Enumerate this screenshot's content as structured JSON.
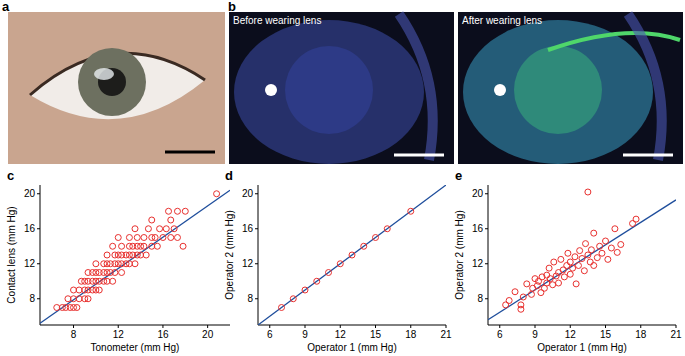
{
  "photos": [
    {
      "label": "a"
    },
    {
      "label": "b",
      "captions": [
        "Before wearing lens",
        "After wearing lens"
      ]
    }
  ],
  "chart_data": [
    {
      "type": "scatter",
      "panel": "c",
      "x_label": "Tonometer (mm Hg)",
      "y_label": "Contact lens (mm Hg)",
      "color": "#e8312f",
      "marker": "circle",
      "x": [
        6.5,
        7,
        7.3,
        7.7,
        8,
        8.3,
        7.5,
        8,
        8.5,
        9,
        9.3,
        8,
        8.5,
        9,
        9.3,
        9.7,
        10,
        10.3,
        8.7,
        9,
        9.3,
        9.7,
        10,
        10.3,
        10.7,
        11,
        11.5,
        9.3,
        9.7,
        10,
        10.3,
        10.7,
        11,
        11.3,
        11.7,
        12.3,
        10,
        10.7,
        11,
        11.3,
        11.7,
        12,
        12.3,
        12.7,
        13,
        13.5,
        11,
        11.7,
        12,
        12.3,
        12.7,
        13,
        13.3,
        13.7,
        14,
        14.5,
        11.5,
        12.3,
        13,
        13.3,
        13.7,
        14,
        14.3,
        15,
        15.5,
        17.8,
        12,
        13,
        13.7,
        14.3,
        15,
        15.3,
        16,
        16.7,
        17.3,
        13.5,
        14.7,
        15.7,
        16.3,
        17,
        15,
        16.7,
        16.5,
        17.3,
        18,
        20.8
      ],
      "values": [
        7,
        7,
        7,
        7,
        7,
        7,
        8,
        8,
        8,
        8,
        8,
        9,
        9,
        9,
        9,
        9,
        9,
        9,
        10,
        10,
        10,
        10,
        10,
        10,
        10,
        10,
        10,
        11,
        11,
        11,
        11,
        11,
        11,
        11,
        11,
        11,
        12,
        12,
        12,
        12,
        12,
        12,
        12,
        12,
        12,
        12,
        13,
        13,
        13,
        13,
        13,
        13,
        13,
        13,
        13,
        13,
        14,
        14,
        14,
        14,
        14,
        14,
        14,
        14,
        14,
        14,
        15,
        15,
        15,
        15,
        15,
        15,
        15,
        15,
        15,
        16,
        16,
        16,
        16,
        16,
        17,
        17,
        18,
        18,
        18,
        20
      ],
      "fit": {
        "color": "#1f4e9c",
        "x": [
          5,
          22
        ],
        "y": [
          5.2,
          20.4
        ]
      },
      "xlim": [
        5,
        22
      ],
      "ylim": [
        5,
        21
      ],
      "xticks": [
        8,
        12,
        16,
        20
      ],
      "yticks": [
        8,
        12,
        16,
        20
      ]
    },
    {
      "type": "scatter",
      "panel": "d",
      "x_label": "Operator 1 (mm Hg)",
      "y_label": "Operator 2 (mm Hg)",
      "color": "#e8312f",
      "marker": "circle",
      "x": [
        7,
        8,
        9,
        10,
        11,
        12,
        13,
        14,
        15,
        16,
        18
      ],
      "values": [
        7,
        8,
        9,
        10,
        11,
        12,
        13,
        14,
        15,
        16,
        18
      ],
      "fit": {
        "color": "#1f4e9c",
        "x": [
          5,
          21
        ],
        "y": [
          5,
          21
        ]
      },
      "xlim": [
        5,
        21
      ],
      "ylim": [
        5,
        21
      ],
      "xticks": [
        6,
        9,
        12,
        15,
        18,
        21
      ],
      "yticks": [
        8,
        12,
        16,
        20
      ]
    },
    {
      "type": "scatter",
      "panel": "e",
      "x_label": "Operator 1 (mm Hg)",
      "y_label": "Operator 2 (mm Hg)",
      "color": "#e8312f",
      "marker": "circle",
      "x": [
        6.5,
        6.8,
        7.3,
        7.8,
        7.8,
        8,
        8.3,
        8.7,
        8.8,
        9,
        9.2,
        9.3,
        9.5,
        9.6,
        9.8,
        10,
        10,
        10.2,
        10.3,
        10.5,
        10.6,
        10.8,
        11,
        11,
        11.2,
        11.4,
        11.5,
        11.7,
        11.8,
        12,
        12,
        12.2,
        12.4,
        12.5,
        12.7,
        12.8,
        13,
        13.2,
        13.3,
        13.5,
        13.5,
        13.7,
        13.8,
        14,
        14,
        14.3,
        14.5,
        14.7,
        15,
        15.2,
        15.5,
        15.8,
        16,
        16.3,
        17.3,
        17.6
      ],
      "values": [
        7.3,
        7.8,
        8.8,
        6.8,
        7.3,
        8.2,
        9.7,
        8.5,
        9.2,
        10.3,
        9.5,
        10,
        8.7,
        10.5,
        9.2,
        10.7,
        9.8,
        11.5,
        10.3,
        9.6,
        12.2,
        10.6,
        11,
        9.8,
        12.5,
        11.3,
        10.5,
        11.8,
        13.2,
        12.2,
        10.8,
        11.5,
        12.8,
        9.7,
        11.8,
        13.5,
        12.6,
        11.2,
        14.3,
        13,
        20.2,
        12.2,
        13.6,
        15.5,
        11.8,
        12.7,
        14,
        13.2,
        14.6,
        12.5,
        13.8,
        16,
        13.3,
        14.2,
        16.6,
        17.1
      ],
      "fit": {
        "color": "#1f4e9c",
        "x": [
          5,
          21
        ],
        "y": [
          5.6,
          19.3
        ]
      },
      "xlim": [
        5,
        21
      ],
      "ylim": [
        5,
        21
      ],
      "xticks": [
        6,
        9,
        12,
        15,
        18,
        21
      ],
      "yticks": [
        8,
        12,
        16,
        20
      ]
    }
  ]
}
